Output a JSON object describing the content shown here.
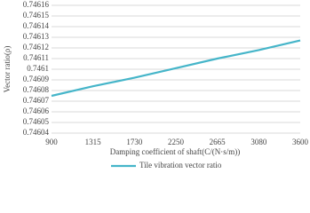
{
  "chart_data": {
    "type": "line",
    "x_label": "Damping coefficient of shaft(C/(N·s/m))",
    "y_label": "Vector ratio(ρ)",
    "categories": [
      "900",
      "1315",
      "1730",
      "2250",
      "2665",
      "3080",
      "3600"
    ],
    "series": [
      {
        "name": "Tile vibration vector ratio",
        "color": "#45b5c9",
        "values": [
          0.746075,
          0.746084,
          0.746092,
          0.746101,
          0.74611,
          0.746118,
          0.746127
        ]
      }
    ],
    "ylim": [
      0.74604,
      0.74616
    ],
    "yticks": [
      0.74604,
      0.74605,
      0.74606,
      0.74607,
      0.74608,
      0.74609,
      0.7461,
      0.74611,
      0.74612,
      0.74613,
      0.74614,
      0.74615,
      0.74616
    ],
    "grid": true,
    "legend": "bottom"
  }
}
